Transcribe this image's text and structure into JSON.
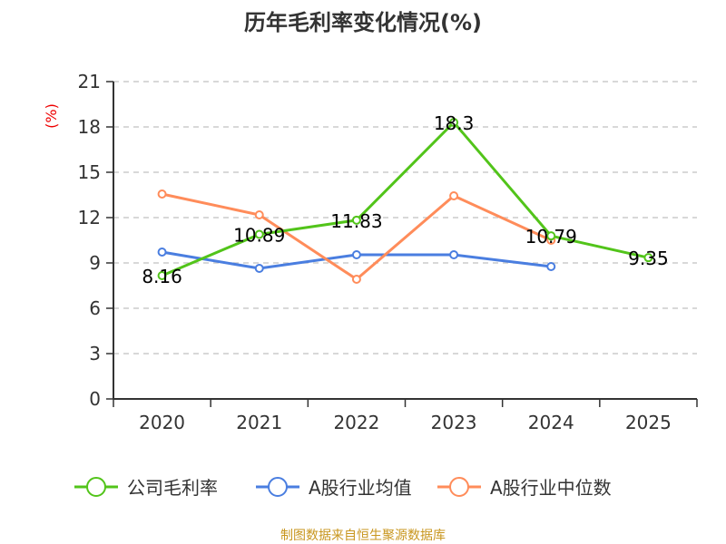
{
  "chart_data": {
    "type": "line",
    "title": "历年毛利率变化情况(%)",
    "ylabel": "(%)",
    "xlabel": "",
    "categories": [
      "2020",
      "2021",
      "2022",
      "2023",
      "2024",
      "2025"
    ],
    "ylim": [
      0,
      21
    ],
    "yticks": [
      0,
      3,
      6,
      9,
      12,
      15,
      18,
      21
    ],
    "grid": true,
    "legend": "bottom",
    "series": [
      {
        "name": "公司毛利率",
        "color": "#52c41a",
        "values": [
          8.16,
          10.89,
          11.83,
          18.3,
          10.79,
          9.35
        ],
        "labels": [
          "8.16",
          "10.89",
          "11.83",
          "18.3",
          "10.79",
          "9.35"
        ]
      },
      {
        "name": "A股行业均值",
        "color": "#4a7ee0",
        "values": [
          9.72,
          8.64,
          9.54,
          9.54,
          8.76,
          null
        ]
      },
      {
        "name": "A股行业中位数",
        "color": "#ff8c5a",
        "values": [
          13.56,
          12.18,
          7.92,
          13.44,
          10.5,
          null
        ]
      }
    ]
  },
  "footer": {
    "source": "制图数据来自恒生聚源数据库"
  }
}
